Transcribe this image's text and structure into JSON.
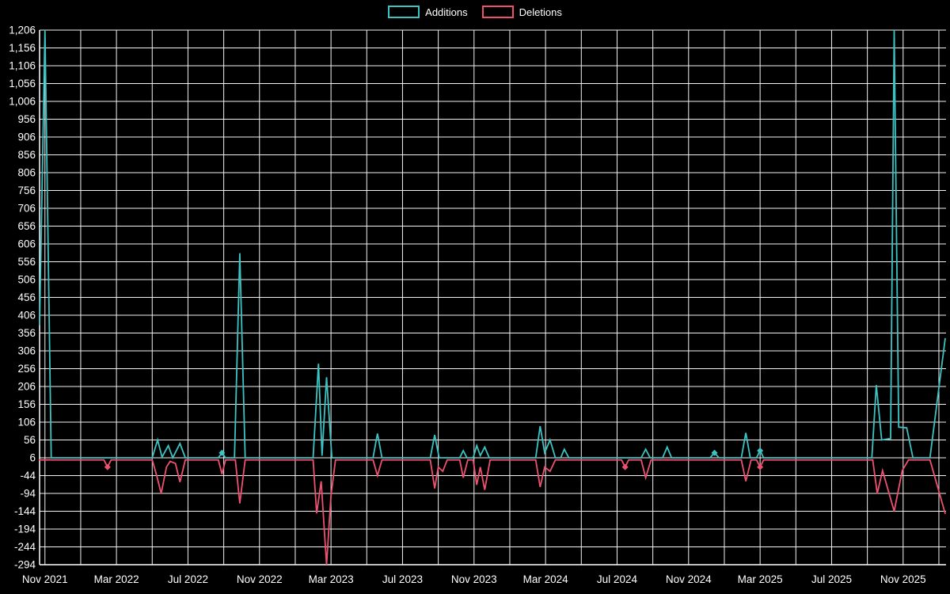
{
  "legend": {
    "items": [
      {
        "label": "Additions",
        "color": "#3cc3c3"
      },
      {
        "label": "Deletions",
        "color": "#ee5170"
      }
    ]
  },
  "chart_data": {
    "type": "line",
    "title": "",
    "xlabel": "",
    "ylabel": "",
    "background": "#000000",
    "grid": {
      "show": true,
      "color": "#ffffff",
      "vertical_every_months": 2,
      "x_month_range": [
        -0.3,
        50.4
      ]
    },
    "x_axis": {
      "labels": [
        "Nov 2021",
        "Mar 2022",
        "Jul 2022",
        "Nov 2022",
        "Mar 2023",
        "Jul 2023",
        "Nov 2023",
        "Mar 2024",
        "Jul 2024",
        "Nov 2024",
        "Mar 2025",
        "Jul 2025",
        "Nov 2025"
      ],
      "label_month_offsets": [
        0,
        4,
        8,
        12,
        16,
        20,
        24,
        28,
        32,
        36,
        40,
        44,
        48
      ]
    },
    "y_axis": {
      "min": -294,
      "max": 1206,
      "step": 50,
      "tick_values": [
        1206,
        1156,
        1106,
        1056,
        1006,
        956,
        906,
        856,
        806,
        756,
        706,
        656,
        606,
        556,
        506,
        456,
        406,
        356,
        306,
        256,
        206,
        156,
        106,
        56,
        6,
        -44,
        -94,
        -144,
        -194,
        -244,
        -294
      ],
      "tick_labels": [
        "1,206",
        "1,156",
        "1,106",
        "1,056",
        "1,006",
        "956",
        "906",
        "856",
        "806",
        "756",
        "706",
        "656",
        "606",
        "556",
        "506",
        "456",
        "406",
        "356",
        "306",
        "256",
        "206",
        "156",
        "106",
        "56",
        "6",
        "-44",
        "-94",
        "-144",
        "-194",
        "-244",
        "-294"
      ]
    },
    "series": [
      {
        "name": "Additions",
        "color": "#3cc3c3",
        "baseline": 6,
        "points": [
          [
            -0.3,
            380
          ],
          [
            0,
            1206
          ],
          [
            0.35,
            6
          ],
          [
            6.0,
            6
          ],
          [
            6.3,
            56
          ],
          [
            6.55,
            8
          ],
          [
            6.9,
            40
          ],
          [
            7.15,
            6
          ],
          [
            7.55,
            46
          ],
          [
            7.85,
            6
          ],
          [
            9.7,
            6
          ],
          [
            9.9,
            20
          ],
          [
            10.1,
            6
          ],
          [
            10.6,
            6
          ],
          [
            10.9,
            580
          ],
          [
            11.2,
            6
          ],
          [
            15.0,
            6
          ],
          [
            15.3,
            270
          ],
          [
            15.5,
            12
          ],
          [
            15.75,
            232
          ],
          [
            16.05,
            6
          ],
          [
            18.35,
            6
          ],
          [
            18.6,
            74
          ],
          [
            18.85,
            6
          ],
          [
            21.55,
            6
          ],
          [
            21.8,
            70
          ],
          [
            22.05,
            6
          ],
          [
            23.2,
            6
          ],
          [
            23.4,
            26
          ],
          [
            23.6,
            6
          ],
          [
            23.95,
            6
          ],
          [
            24.15,
            40
          ],
          [
            24.35,
            12
          ],
          [
            24.6,
            36
          ],
          [
            24.85,
            6
          ],
          [
            27.45,
            6
          ],
          [
            27.7,
            95
          ],
          [
            27.95,
            20
          ],
          [
            28.25,
            56
          ],
          [
            28.55,
            6
          ],
          [
            28.85,
            6
          ],
          [
            29.05,
            30
          ],
          [
            29.3,
            6
          ],
          [
            33.35,
            6
          ],
          [
            33.6,
            30
          ],
          [
            33.85,
            6
          ],
          [
            34.55,
            6
          ],
          [
            34.8,
            36
          ],
          [
            35.05,
            6
          ],
          [
            37.2,
            6
          ],
          [
            37.45,
            20
          ],
          [
            37.7,
            6
          ],
          [
            38.95,
            6
          ],
          [
            39.2,
            76
          ],
          [
            39.45,
            6
          ],
          [
            39.8,
            6
          ],
          [
            40.0,
            26
          ],
          [
            40.2,
            6
          ],
          [
            46.25,
            6
          ],
          [
            46.5,
            210
          ],
          [
            46.8,
            56
          ],
          [
            47.3,
            60
          ],
          [
            47.5,
            1206
          ],
          [
            47.75,
            92
          ],
          [
            48.2,
            90
          ],
          [
            48.55,
            6
          ],
          [
            49.5,
            6
          ],
          [
            50.35,
            340
          ]
        ],
        "marker_points": [
          [
            9.9,
            20
          ],
          [
            37.45,
            20
          ],
          [
            40.0,
            26
          ]
        ]
      },
      {
        "name": "Deletions",
        "color": "#ee5170",
        "baseline": 0,
        "points": [
          [
            -0.3,
            0
          ],
          [
            3.3,
            0
          ],
          [
            3.5,
            -20
          ],
          [
            3.7,
            0
          ],
          [
            6.0,
            0
          ],
          [
            6.25,
            -44
          ],
          [
            6.5,
            -94
          ],
          [
            6.8,
            -20
          ],
          [
            7.0,
            -4
          ],
          [
            7.3,
            -10
          ],
          [
            7.55,
            -62
          ],
          [
            7.85,
            0
          ],
          [
            9.7,
            0
          ],
          [
            9.9,
            -40
          ],
          [
            10.1,
            0
          ],
          [
            10.65,
            0
          ],
          [
            10.9,
            -122
          ],
          [
            11.2,
            0
          ],
          [
            15.0,
            0
          ],
          [
            15.2,
            -150
          ],
          [
            15.45,
            -60
          ],
          [
            15.75,
            -294
          ],
          [
            16.0,
            -100
          ],
          [
            16.25,
            0
          ],
          [
            18.35,
            0
          ],
          [
            18.6,
            -44
          ],
          [
            18.85,
            0
          ],
          [
            21.55,
            0
          ],
          [
            21.8,
            -80
          ],
          [
            22.0,
            -20
          ],
          [
            22.25,
            -32
          ],
          [
            22.5,
            0
          ],
          [
            23.2,
            0
          ],
          [
            23.4,
            -50
          ],
          [
            23.65,
            0
          ],
          [
            23.95,
            0
          ],
          [
            24.15,
            -70
          ],
          [
            24.35,
            -20
          ],
          [
            24.6,
            -84
          ],
          [
            24.9,
            0
          ],
          [
            27.45,
            0
          ],
          [
            27.7,
            -76
          ],
          [
            27.95,
            -20
          ],
          [
            28.25,
            -32
          ],
          [
            28.55,
            0
          ],
          [
            32.25,
            0
          ],
          [
            32.45,
            -20
          ],
          [
            32.65,
            0
          ],
          [
            33.35,
            0
          ],
          [
            33.6,
            -50
          ],
          [
            33.9,
            0
          ],
          [
            38.95,
            0
          ],
          [
            39.2,
            -60
          ],
          [
            39.5,
            0
          ],
          [
            39.8,
            0
          ],
          [
            40.0,
            -20
          ],
          [
            40.2,
            0
          ],
          [
            46.3,
            0
          ],
          [
            46.55,
            -94
          ],
          [
            46.85,
            -30
          ],
          [
            47.5,
            -144
          ],
          [
            47.95,
            -30
          ],
          [
            48.3,
            0
          ],
          [
            49.5,
            0
          ],
          [
            50.35,
            -150
          ]
        ],
        "marker_points": [
          [
            3.5,
            -20
          ],
          [
            32.45,
            -20
          ],
          [
            40.0,
            -20
          ]
        ]
      }
    ]
  }
}
